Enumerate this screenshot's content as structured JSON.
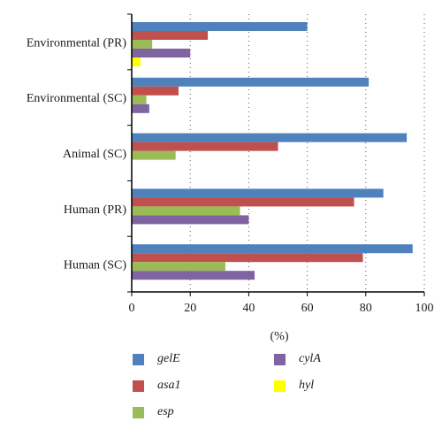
{
  "chart_data": {
    "type": "bar",
    "orientation": "horizontal",
    "categories": [
      "Environmental (PR)",
      "Environmental (SC)",
      "Animal (SC)",
      "Human (PR)",
      "Human (SC)"
    ],
    "series": [
      {
        "name": "gelE",
        "color": "#4f81bd",
        "values": [
          60,
          81,
          94,
          86,
          96
        ]
      },
      {
        "name": "asa1",
        "color": "#c0504d",
        "values": [
          26,
          16,
          50,
          76,
          79
        ]
      },
      {
        "name": "esp",
        "color": "#9bbb59",
        "values": [
          7,
          5,
          15,
          37,
          32
        ]
      },
      {
        "name": "cylA",
        "color": "#8064a2",
        "values": [
          20,
          6,
          0,
          40,
          42
        ]
      },
      {
        "name": "hyl",
        "color": "#ffff00",
        "values": [
          3,
          0,
          0,
          0,
          0
        ]
      }
    ],
    "xlabel": "(%)",
    "xlim": [
      0,
      100
    ],
    "xticks": [
      "0",
      "20",
      "40",
      "60",
      "80",
      "100"
    ],
    "grid": "vertical dotted",
    "legend_position": "bottom"
  }
}
